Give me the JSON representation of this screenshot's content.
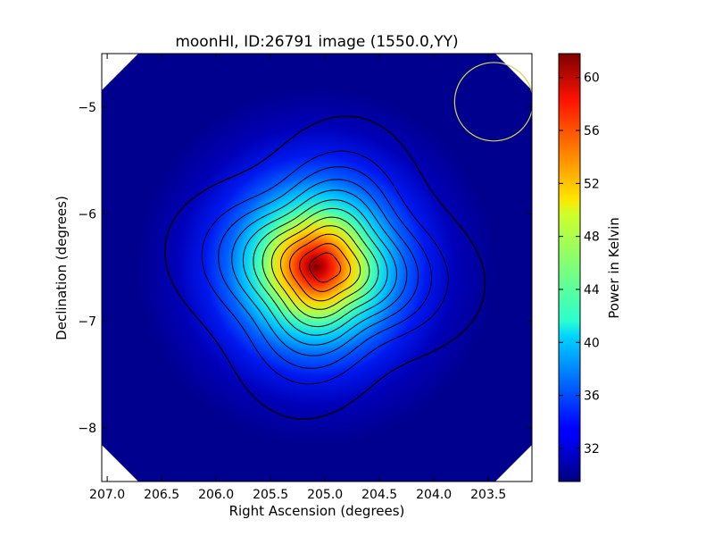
{
  "chart_data": {
    "type": "heatmap",
    "title": "moonHI, ID:26791 image (1550.0,YY)",
    "xlabel": "Right Ascension (degrees)",
    "ylabel": "Declination (degrees)",
    "xlim": [
      207.05,
      203.1
    ],
    "ylim": [
      -8.5,
      -4.5
    ],
    "x_ticks": [
      207.0,
      206.5,
      206.0,
      205.5,
      205.0,
      204.5,
      204.0,
      203.5
    ],
    "x_tick_labels": [
      "207.0",
      "206.5",
      "206.0",
      "205.5",
      "205.0",
      "204.5",
      "204.0",
      "203.5"
    ],
    "y_ticks": [
      -5,
      -6,
      -7,
      -8
    ],
    "y_tick_labels": [
      "−5",
      "−6",
      "−7",
      "−8"
    ],
    "peak": {
      "ra": 205.0,
      "dec": -6.5,
      "value": 61.5
    },
    "background_value": 29.5,
    "colorbar": {
      "label": "Power in Kelvin",
      "min": 29.5,
      "max": 61.8,
      "ticks": [
        32,
        36,
        40,
        44,
        48,
        52,
        56,
        60
      ],
      "tick_labels": [
        "32",
        "36",
        "40",
        "44",
        "48",
        "52",
        "56",
        "60"
      ],
      "colormap": "jet"
    },
    "beam": {
      "ra": 203.45,
      "dec": -4.95,
      "radius_deg": 0.36,
      "color": "#d8d84a"
    },
    "contour_color": "#000000",
    "grid": false
  }
}
